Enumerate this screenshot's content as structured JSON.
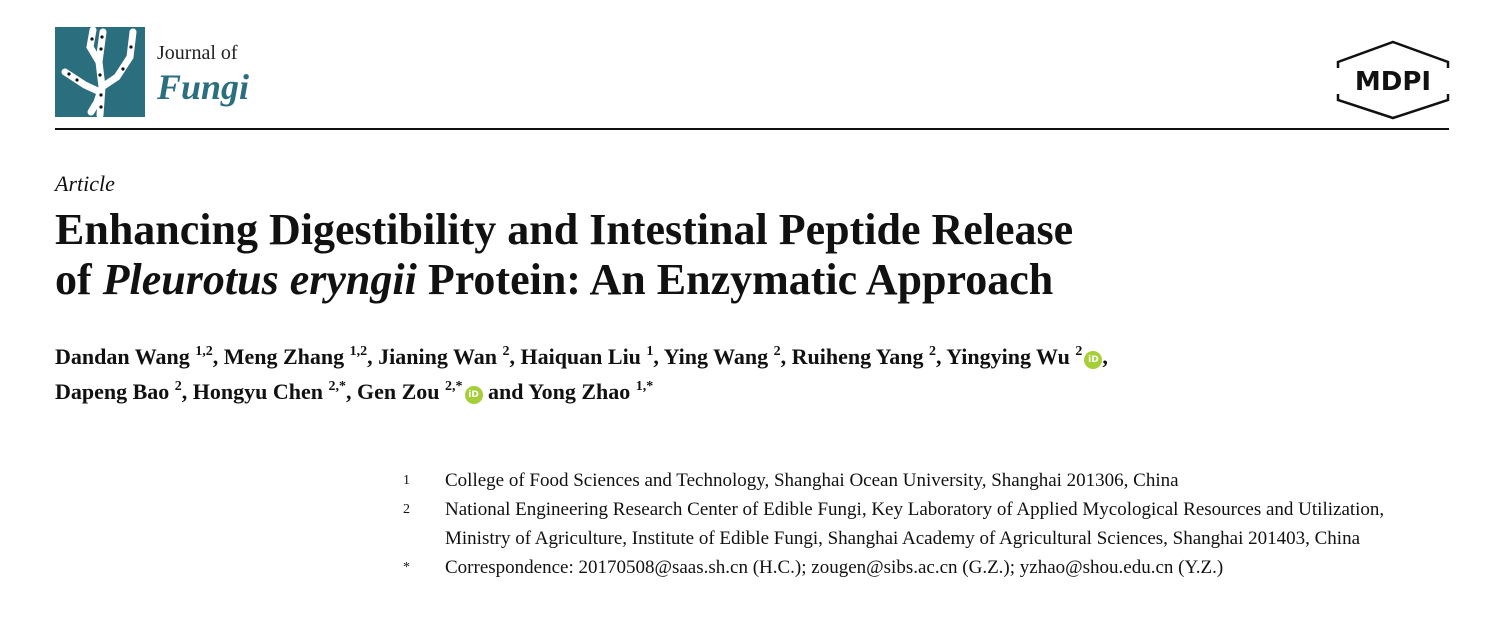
{
  "journal": {
    "prefix": "Journal of",
    "name": "Fungi",
    "brand_color": "#2b6f7f"
  },
  "publisher": {
    "logo_text": "MDPI"
  },
  "article_type": "Article",
  "title": {
    "line1": "Enhancing Digestibility and Intestinal Peptide Release",
    "line2_pre": "of ",
    "line2_italic": "Pleurotus eryngii",
    "line2_post": " Protein: An Enzymatic Approach"
  },
  "authors": [
    {
      "name": "Dandan Wang",
      "sup": "1,2",
      "orcid": false,
      "sep": ", "
    },
    {
      "name": "Meng Zhang",
      "sup": "1,2",
      "orcid": false,
      "sep": ", "
    },
    {
      "name": "Jianing Wan",
      "sup": "2",
      "orcid": false,
      "sep": ", "
    },
    {
      "name": "Haiquan Liu",
      "sup": "1",
      "orcid": false,
      "sep": ", "
    },
    {
      "name": "Ying Wang",
      "sup": "2",
      "orcid": false,
      "sep": ", "
    },
    {
      "name": "Ruiheng Yang",
      "sup": "2",
      "orcid": false,
      "sep": ", "
    },
    {
      "name": "Yingying Wu",
      "sup": "2",
      "orcid": true,
      "sep": ","
    },
    {
      "name": "Dapeng Bao",
      "sup": "2",
      "orcid": false,
      "sep": ", "
    },
    {
      "name": "Hongyu Chen",
      "sup": "2,*",
      "orcid": false,
      "sep": ", "
    },
    {
      "name": "Gen Zou",
      "sup": "2,*",
      "orcid": true,
      "sep": " and "
    },
    {
      "name": "Yong Zhao",
      "sup": "1,*",
      "orcid": false,
      "sep": ""
    }
  ],
  "orcid_color": "#a6ce39",
  "affiliations": [
    {
      "marker": "1",
      "text": "College of Food Sciences and Technology, Shanghai Ocean University, Shanghai 201306, China"
    },
    {
      "marker": "2",
      "text": "National Engineering Research Center of Edible Fungi, Key Laboratory of Applied Mycological Resources and Utilization, Ministry of Agriculture, Institute of Edible Fungi, Shanghai Academy of Agricultural Sciences, Shanghai 201403, China"
    },
    {
      "marker": "*",
      "text": "Correspondence: 20170508@saas.sh.cn (H.C.); zougen@sibs.ac.cn (G.Z.); yzhao@shou.edu.cn (Y.Z.)"
    }
  ]
}
